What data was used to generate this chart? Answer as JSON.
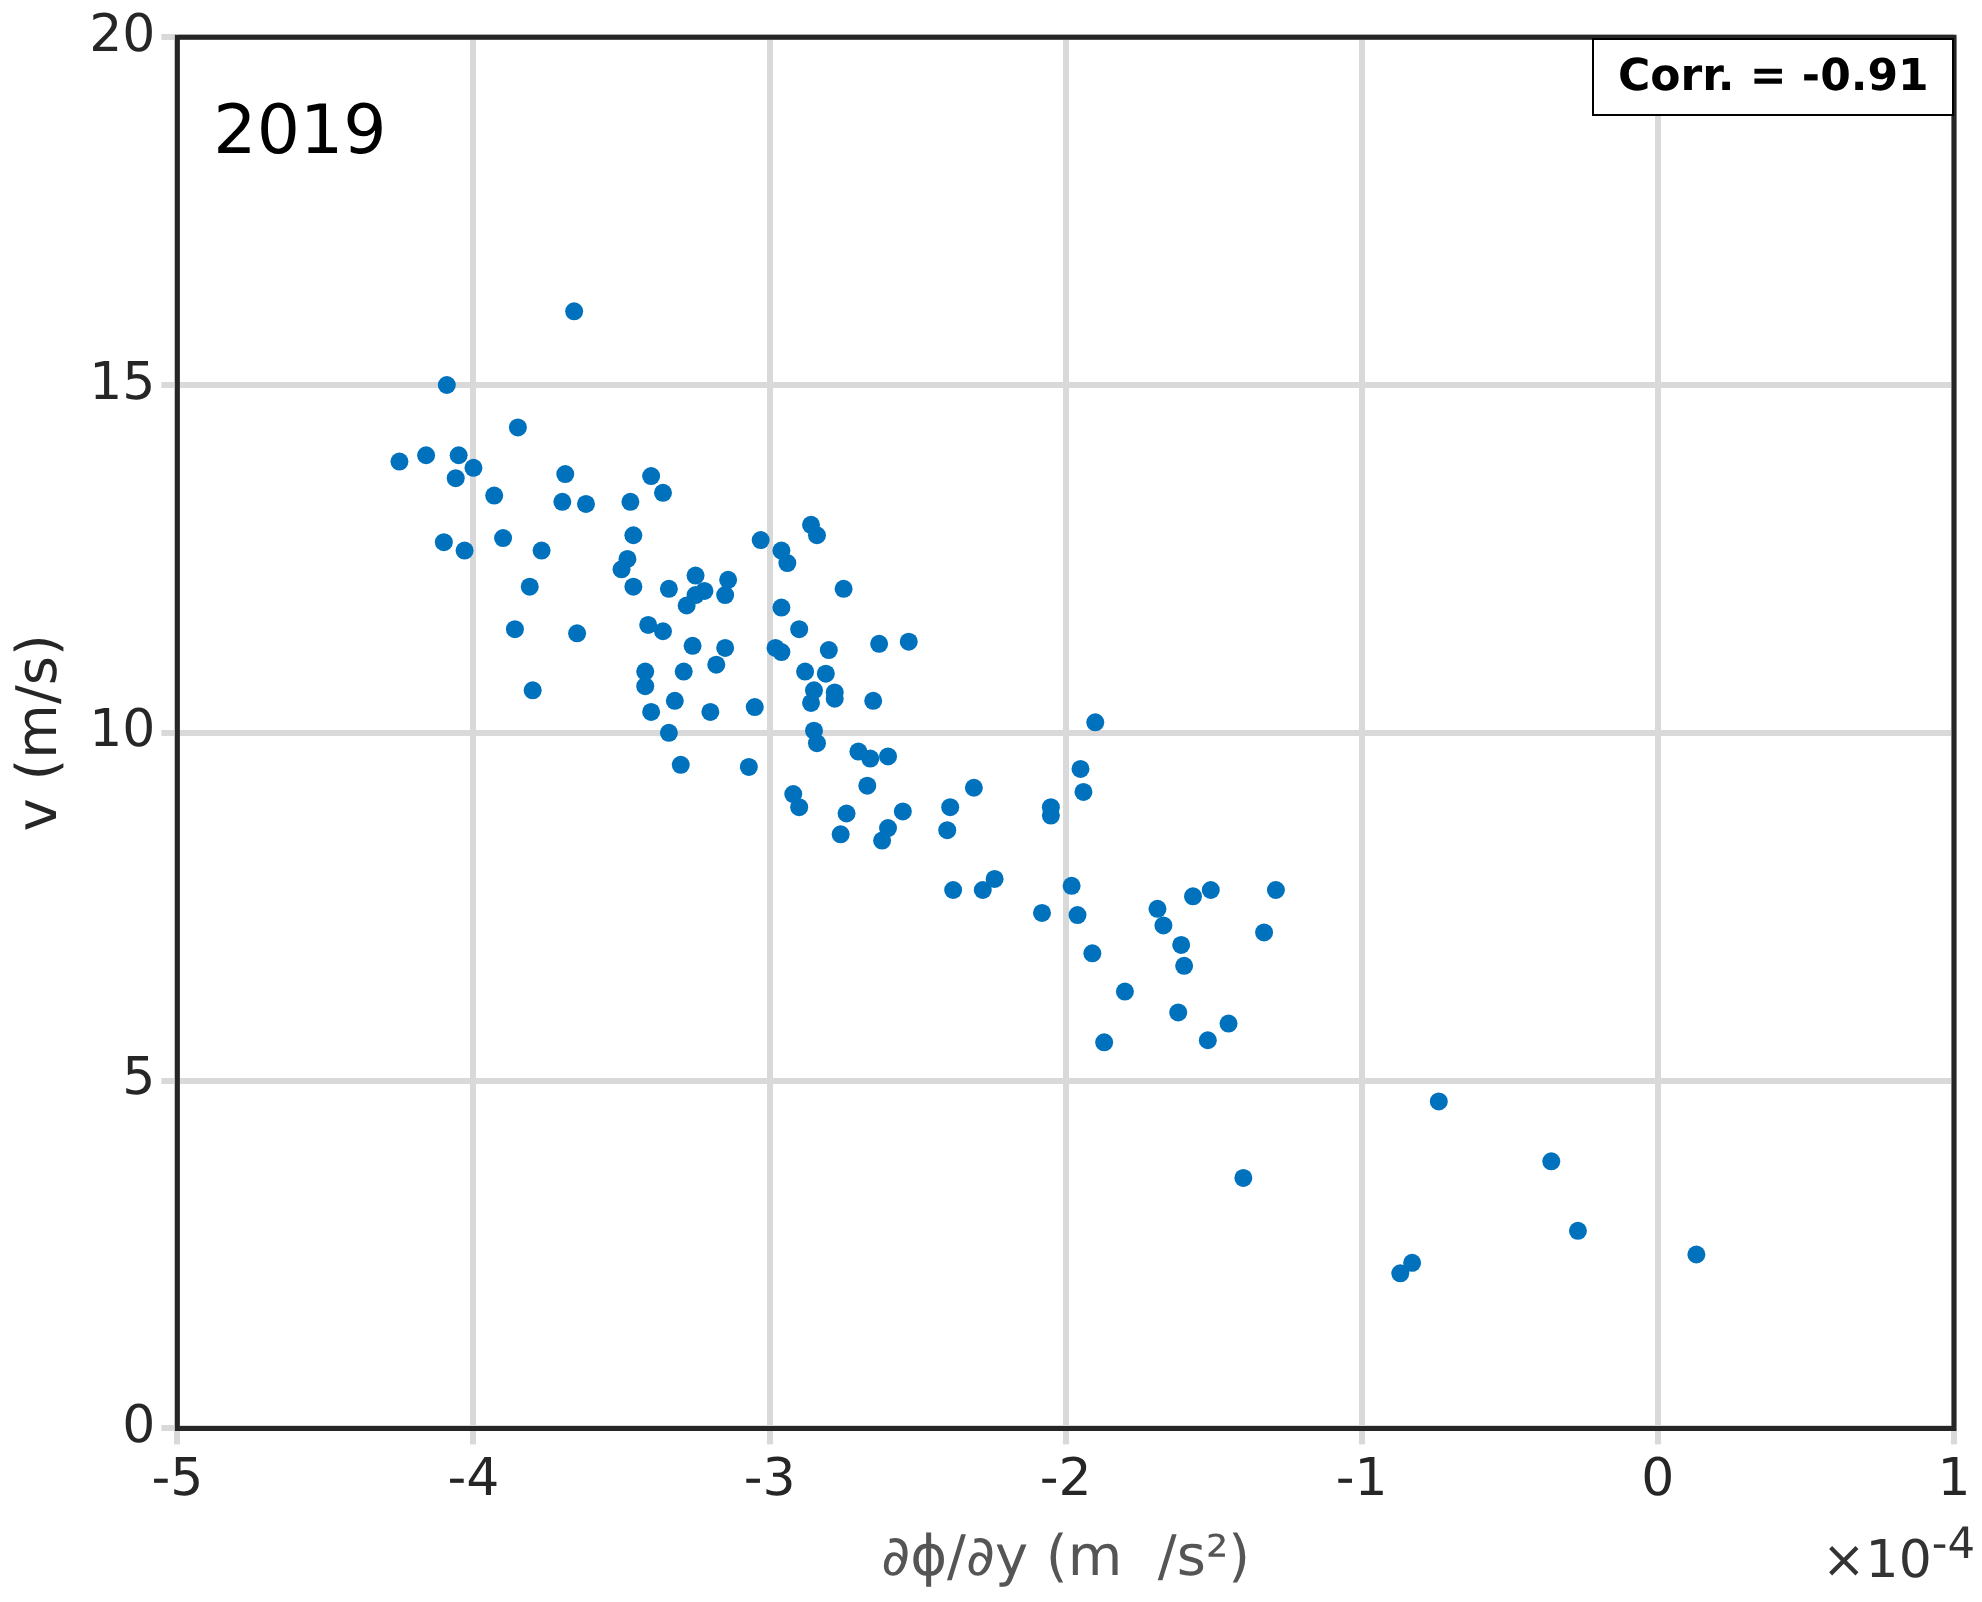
{
  "chart_data": {
    "type": "scatter",
    "title": "2019",
    "xlabel": "∂ϕ/∂y (m  /s²)",
    "ylabel": "v (m/s)",
    "annotations": [
      "Corr. = -0.91",
      "×10$^{-4}$"
    ],
    "xlim": [
      -5,
      1
    ],
    "xticks": [
      -5,
      -4,
      -3,
      -2,
      -1,
      0,
      1
    ],
    "ylim": [
      0,
      20
    ],
    "yticks": [
      0,
      5,
      10,
      15,
      20
    ],
    "grid": true,
    "marker": "circle",
    "series": [
      {
        "color": "#0072bd",
        "x": [
          -3.66,
          -4.09,
          -3.85,
          -4.25,
          -4.16,
          -4.05,
          -4.06,
          -4.0,
          -3.93,
          -3.69,
          -3.7,
          -3.62,
          -3.9,
          -3.77,
          -4.1,
          -4.03,
          -3.81,
          -3.86,
          -3.65,
          -3.8,
          -3.4,
          -3.36,
          -3.47,
          -3.46,
          -3.48,
          -3.5,
          -3.46,
          -3.34,
          -3.25,
          -3.14,
          -3.15,
          -3.22,
          -3.28,
          -3.25,
          -3.41,
          -3.36,
          -3.26,
          -3.15,
          -3.42,
          -3.42,
          -3.29,
          -3.18,
          -3.32,
          -3.4,
          -3.2,
          -3.34,
          -3.3,
          -3.05,
          -3.07,
          -3.03,
          -2.96,
          -2.94,
          -2.86,
          -2.84,
          -2.96,
          -2.9,
          -2.98,
          -2.96,
          -2.8,
          -2.88,
          -2.81,
          -2.85,
          -2.78,
          -2.86,
          -2.78,
          -2.85,
          -2.84,
          -2.92,
          -2.9,
          -2.75,
          -2.74,
          -2.63,
          -2.53,
          -2.65,
          -2.7,
          -2.66,
          -2.6,
          -2.67,
          -2.76,
          -2.62,
          -2.6,
          -2.55,
          -2.39,
          -2.4,
          -2.31,
          -2.05,
          -2.05,
          -1.9,
          -1.95,
          -1.94,
          -2.38,
          -2.28,
          -2.24,
          -1.98,
          -2.08,
          -1.96,
          -1.91,
          -1.8,
          -1.69,
          -1.67,
          -1.61,
          -1.6,
          -1.57,
          -1.51,
          -1.29,
          -1.33,
          -1.62,
          -1.45,
          -1.87,
          -1.52,
          -0.74,
          -1.4,
          -0.36,
          -0.27,
          0.13,
          -0.83,
          -0.87
        ],
        "values": [
          16.06,
          15.0,
          14.39,
          13.9,
          13.99,
          13.99,
          13.66,
          13.81,
          13.41,
          13.72,
          13.32,
          13.29,
          12.8,
          12.62,
          12.74,
          12.62,
          12.1,
          11.49,
          11.43,
          10.61,
          13.69,
          13.45,
          13.32,
          12.84,
          12.5,
          12.35,
          12.1,
          12.07,
          12.26,
          12.2,
          11.98,
          12.04,
          11.83,
          11.98,
          11.55,
          11.46,
          11.25,
          11.22,
          10.88,
          10.67,
          10.88,
          10.98,
          10.46,
          10.3,
          10.3,
          10.0,
          9.54,
          10.37,
          9.51,
          12.77,
          12.62,
          12.44,
          12.99,
          12.84,
          11.8,
          11.49,
          11.22,
          11.16,
          11.19,
          10.88,
          10.85,
          10.61,
          10.58,
          10.43,
          10.49,
          10.03,
          9.85,
          9.12,
          8.93,
          12.07,
          8.84,
          11.28,
          11.31,
          10.46,
          9.73,
          9.63,
          9.66,
          9.24,
          8.54,
          8.45,
          8.63,
          8.87,
          8.93,
          8.6,
          9.21,
          8.93,
          8.81,
          10.15,
          9.48,
          9.15,
          7.74,
          7.74,
          7.9,
          7.8,
          7.41,
          7.38,
          6.83,
          6.28,
          7.47,
          7.23,
          6.95,
          6.65,
          7.65,
          7.74,
          7.74,
          7.13,
          5.98,
          5.82,
          5.55,
          5.58,
          4.7,
          3.6,
          3.84,
          2.84,
          2.5,
          2.38,
          2.23
        ]
      }
    ]
  }
}
